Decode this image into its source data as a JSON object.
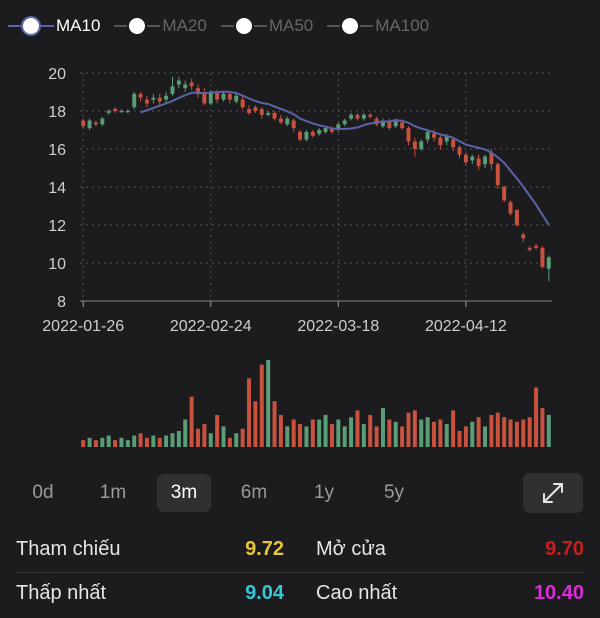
{
  "legend": [
    {
      "label": "MA10",
      "active": true
    },
    {
      "label": "MA20",
      "active": false
    },
    {
      "label": "MA50",
      "active": false
    },
    {
      "label": "MA100",
      "active": false
    }
  ],
  "periods": [
    "0d",
    "1m",
    "3m",
    "6m",
    "1y",
    "5y"
  ],
  "selected_period": "3m",
  "stats": [
    {
      "label": "Tham chiếu",
      "value": "9.72",
      "color": "#e8c33b"
    },
    {
      "label": "Mở cửa",
      "value": "9.70",
      "color": "#c4201e"
    },
    {
      "label": "Thấp nhất",
      "value": "9.04",
      "color": "#35c7d6"
    },
    {
      "label": "Cao nhất",
      "value": "10.40",
      "color": "#d92cd6"
    }
  ],
  "colors": {
    "up": "#5a9e78",
    "down": "#c9523f",
    "ma": "#5b63a8",
    "grid": "#555555"
  },
  "chart_data": {
    "type": "candlestick",
    "ylim": [
      8,
      20
    ],
    "yticks": [
      8,
      10,
      12,
      14,
      16,
      18,
      20
    ],
    "xtick_labels": [
      "2022-01-26",
      "2022-02-24",
      "2022-03-18",
      "2022-04-12"
    ],
    "xtick_index": [
      0,
      20,
      40,
      60
    ],
    "candles": [
      [
        17.5,
        17.2,
        17.6,
        17.1
      ],
      [
        17.1,
        17.5,
        17.6,
        17.0
      ],
      [
        17.4,
        17.3,
        17.5,
        17.2
      ],
      [
        17.3,
        17.6,
        17.7,
        17.2
      ],
      [
        17.9,
        18.0,
        18.1,
        17.8
      ],
      [
        18.1,
        18.0,
        18.2,
        17.9
      ],
      [
        18.0,
        18.0,
        18.1,
        17.9
      ],
      [
        18.0,
        18.0,
        18.1,
        17.9
      ],
      [
        18.2,
        18.9,
        19.0,
        18.1
      ],
      [
        18.9,
        18.7,
        19.0,
        18.5
      ],
      [
        18.6,
        18.4,
        18.8,
        18.2
      ],
      [
        18.6,
        18.7,
        18.9,
        18.4
      ],
      [
        18.7,
        18.5,
        18.9,
        18.3
      ],
      [
        18.6,
        18.8,
        19.0,
        18.4
      ],
      [
        18.9,
        19.3,
        19.8,
        18.8
      ],
      [
        19.4,
        19.6,
        19.8,
        19.2
      ],
      [
        19.2,
        19.4,
        19.6,
        19.0
      ],
      [
        19.5,
        19.3,
        19.7,
        19.1
      ],
      [
        19.2,
        18.9,
        19.4,
        18.7
      ],
      [
        19.0,
        18.4,
        19.2,
        18.3
      ],
      [
        18.4,
        19.0,
        19.1,
        18.3
      ],
      [
        19.0,
        18.6,
        19.1,
        18.4
      ],
      [
        18.6,
        18.9,
        19.0,
        18.5
      ],
      [
        18.9,
        18.6,
        19.0,
        18.4
      ],
      [
        18.5,
        18.8,
        18.9,
        18.4
      ],
      [
        18.6,
        18.2,
        18.8,
        18.1
      ],
      [
        18.1,
        17.9,
        18.3,
        17.8
      ],
      [
        18.2,
        18.0,
        18.3,
        17.9
      ],
      [
        18.1,
        17.8,
        18.2,
        17.6
      ],
      [
        17.8,
        17.9,
        18.0,
        17.7
      ],
      [
        17.9,
        17.6,
        18.0,
        17.5
      ],
      [
        17.6,
        17.4,
        17.8,
        17.3
      ],
      [
        17.3,
        17.6,
        17.7,
        17.2
      ],
      [
        17.5,
        17.1,
        17.6,
        16.9
      ],
      [
        16.9,
        16.5,
        17.0,
        16.4
      ],
      [
        16.5,
        16.9,
        17.0,
        16.4
      ],
      [
        16.9,
        16.7,
        17.0,
        16.6
      ],
      [
        16.8,
        17.0,
        17.1,
        16.7
      ],
      [
        16.9,
        17.1,
        17.2,
        16.8
      ],
      [
        17.1,
        16.9,
        17.2,
        16.8
      ],
      [
        17.0,
        17.3,
        17.4,
        16.9
      ],
      [
        17.3,
        17.5,
        17.6,
        17.2
      ],
      [
        17.6,
        17.8,
        17.9,
        17.5
      ],
      [
        17.8,
        17.6,
        17.9,
        17.5
      ],
      [
        17.6,
        17.8,
        17.9,
        17.5
      ],
      [
        17.8,
        17.7,
        17.9,
        17.6
      ],
      [
        17.6,
        17.3,
        17.7,
        17.2
      ],
      [
        17.2,
        17.5,
        17.6,
        17.1
      ],
      [
        17.5,
        17.1,
        17.6,
        17.0
      ],
      [
        17.2,
        17.5,
        17.6,
        17.1
      ],
      [
        17.4,
        17.1,
        17.5,
        17.0
      ],
      [
        17.1,
        16.4,
        17.2,
        16.2
      ],
      [
        16.4,
        16.0,
        16.6,
        15.6
      ],
      [
        16.0,
        16.4,
        16.5,
        15.9
      ],
      [
        16.5,
        16.9,
        17.0,
        16.3
      ],
      [
        16.8,
        16.6,
        17.0,
        16.4
      ],
      [
        16.6,
        16.2,
        16.7,
        16.0
      ],
      [
        16.4,
        16.7,
        16.8,
        16.2
      ],
      [
        16.5,
        16.1,
        16.6,
        15.9
      ],
      [
        16.1,
        15.7,
        16.2,
        15.5
      ],
      [
        15.7,
        15.3,
        15.8,
        15.1
      ],
      [
        15.4,
        15.6,
        15.7,
        15.2
      ],
      [
        15.5,
        15.1,
        15.7,
        14.9
      ],
      [
        15.2,
        15.6,
        15.7,
        15.0
      ],
      [
        15.8,
        15.2,
        16.0,
        14.9
      ],
      [
        15.2,
        14.1,
        15.3,
        13.9
      ],
      [
        14.0,
        13.3,
        14.1,
        13.2
      ],
      [
        13.2,
        12.6,
        13.3,
        12.5
      ],
      [
        12.8,
        12.0,
        12.8,
        11.9
      ],
      [
        11.5,
        11.3,
        11.6,
        11.1
      ],
      [
        10.8,
        10.7,
        10.9,
        10.6
      ],
      [
        10.9,
        10.8,
        11.0,
        10.7
      ],
      [
        10.8,
        9.8,
        10.9,
        9.7
      ],
      [
        9.7,
        10.3,
        10.4,
        9.04
      ]
    ],
    "volume": [
      3,
      4,
      3,
      4,
      5,
      3,
      4,
      3,
      5,
      6,
      4,
      5,
      4,
      5,
      6,
      7,
      12,
      22,
      8,
      10,
      6,
      14,
      9,
      4,
      6,
      8,
      30,
      20,
      36,
      38,
      20,
      14,
      9,
      12,
      10,
      9,
      12,
      12,
      14,
      10,
      12,
      9,
      13,
      16,
      10,
      14,
      9,
      17,
      12,
      11,
      9,
      15,
      16,
      12,
      13,
      11,
      12,
      10,
      16,
      7,
      9,
      11,
      13,
      9,
      14,
      15,
      13,
      12,
      11,
      12,
      13,
      26,
      17,
      14
    ]
  }
}
